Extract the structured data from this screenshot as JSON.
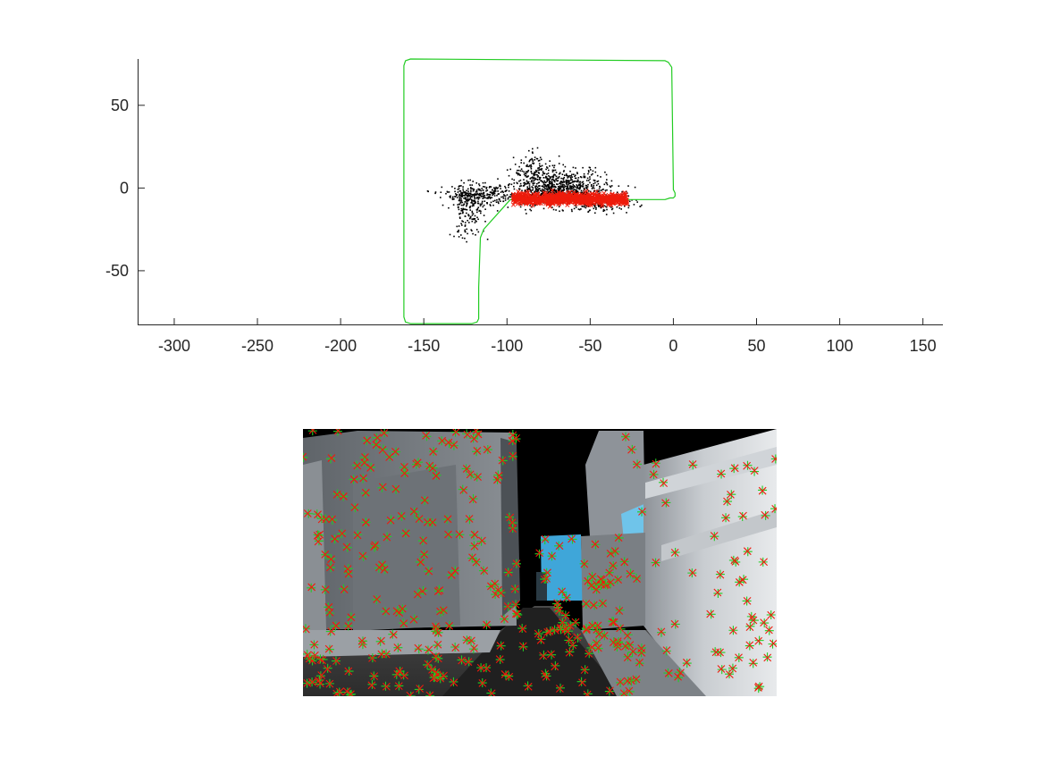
{
  "chart_data": [
    {
      "type": "scatter",
      "title": "",
      "xlabel": "",
      "ylabel": "",
      "xlim": [
        -322,
        162
      ],
      "ylim": [
        -83,
        78
      ],
      "xticks": [
        -300,
        -250,
        -200,
        -150,
        -100,
        -50,
        0,
        50,
        100,
        150
      ],
      "xtick_labels": [
        "-300",
        "-250",
        "-200",
        "-150",
        "-100",
        "-50",
        "0",
        "50",
        "100",
        "150"
      ],
      "yticks": [
        -50,
        0,
        50
      ],
      "ytick_labels": [
        "-50",
        "0",
        "50"
      ],
      "box": "left-and-bottom axes only",
      "grid": false,
      "series": [
        {
          "kind": "trajectory-line",
          "color": "#22cc22",
          "x": [
            0,
            0,
            -1,
            -3,
            -5,
            -158,
            -161,
            -162,
            -162,
            -161,
            -158,
            -121,
            -118,
            -117,
            -117,
            -116,
            -114,
            -98,
            -90,
            -75,
            -55,
            -35,
            -15,
            -5,
            -2,
            0,
            1,
            1,
            0,
            0
          ],
          "y": [
            0,
            1,
            73,
            76,
            77,
            78,
            77,
            74,
            -78,
            -81,
            -82,
            -82,
            -81,
            -79,
            -60,
            -30,
            -25,
            -7,
            -8,
            -8,
            -8,
            -7,
            -7,
            -7,
            -6,
            -6,
            -5,
            -3,
            -1,
            0
          ]
        },
        {
          "kind": "map-points",
          "color": "#000000",
          "clusters": [
            {
              "cx": -70,
              "cy": -3,
              "sx": 16,
              "sy": 4,
              "n": 650
            },
            {
              "cx": -68,
              "cy": 4,
              "sx": 13,
              "sy": 5,
              "n": 320
            },
            {
              "cx": -84,
              "cy": 11,
              "sx": 6,
              "sy": 5,
              "n": 110
            },
            {
              "cx": -118,
              "cy": -4,
              "sx": 10,
              "sy": 3,
              "n": 260
            },
            {
              "cx": -124,
              "cy": -14,
              "sx": 5,
              "sy": 8,
              "n": 160
            },
            {
              "cx": -42,
              "cy": -9,
              "sx": 10,
              "sy": 3,
              "n": 120
            }
          ]
        },
        {
          "kind": "current-landmarks",
          "color": "#ee1c0c",
          "clusters": [
            {
              "cx": -62,
              "cy": -6.5,
              "sx": 18,
              "sy": 1.6,
              "n": 700
            }
          ]
        }
      ]
    },
    {
      "type": "image-with-feature-markers",
      "title": "",
      "frame": {
        "sky": "#000000",
        "ground": "#3a3a3a",
        "left_buildings": [
          "#5a5e63",
          "#6e7378",
          "#7d8287",
          "#8d9297"
        ],
        "right_buildings": [
          "#8e9399",
          "#b5babf",
          "#d7dbde",
          "#eef0f1"
        ],
        "distant_building": "#3fa6d9"
      },
      "markers": {
        "predicted_symbol": "x",
        "predicted_color": "#ee1c0c",
        "observed_symbol": "+",
        "observed_color": "#22cc22",
        "count": 380
      }
    }
  ]
}
